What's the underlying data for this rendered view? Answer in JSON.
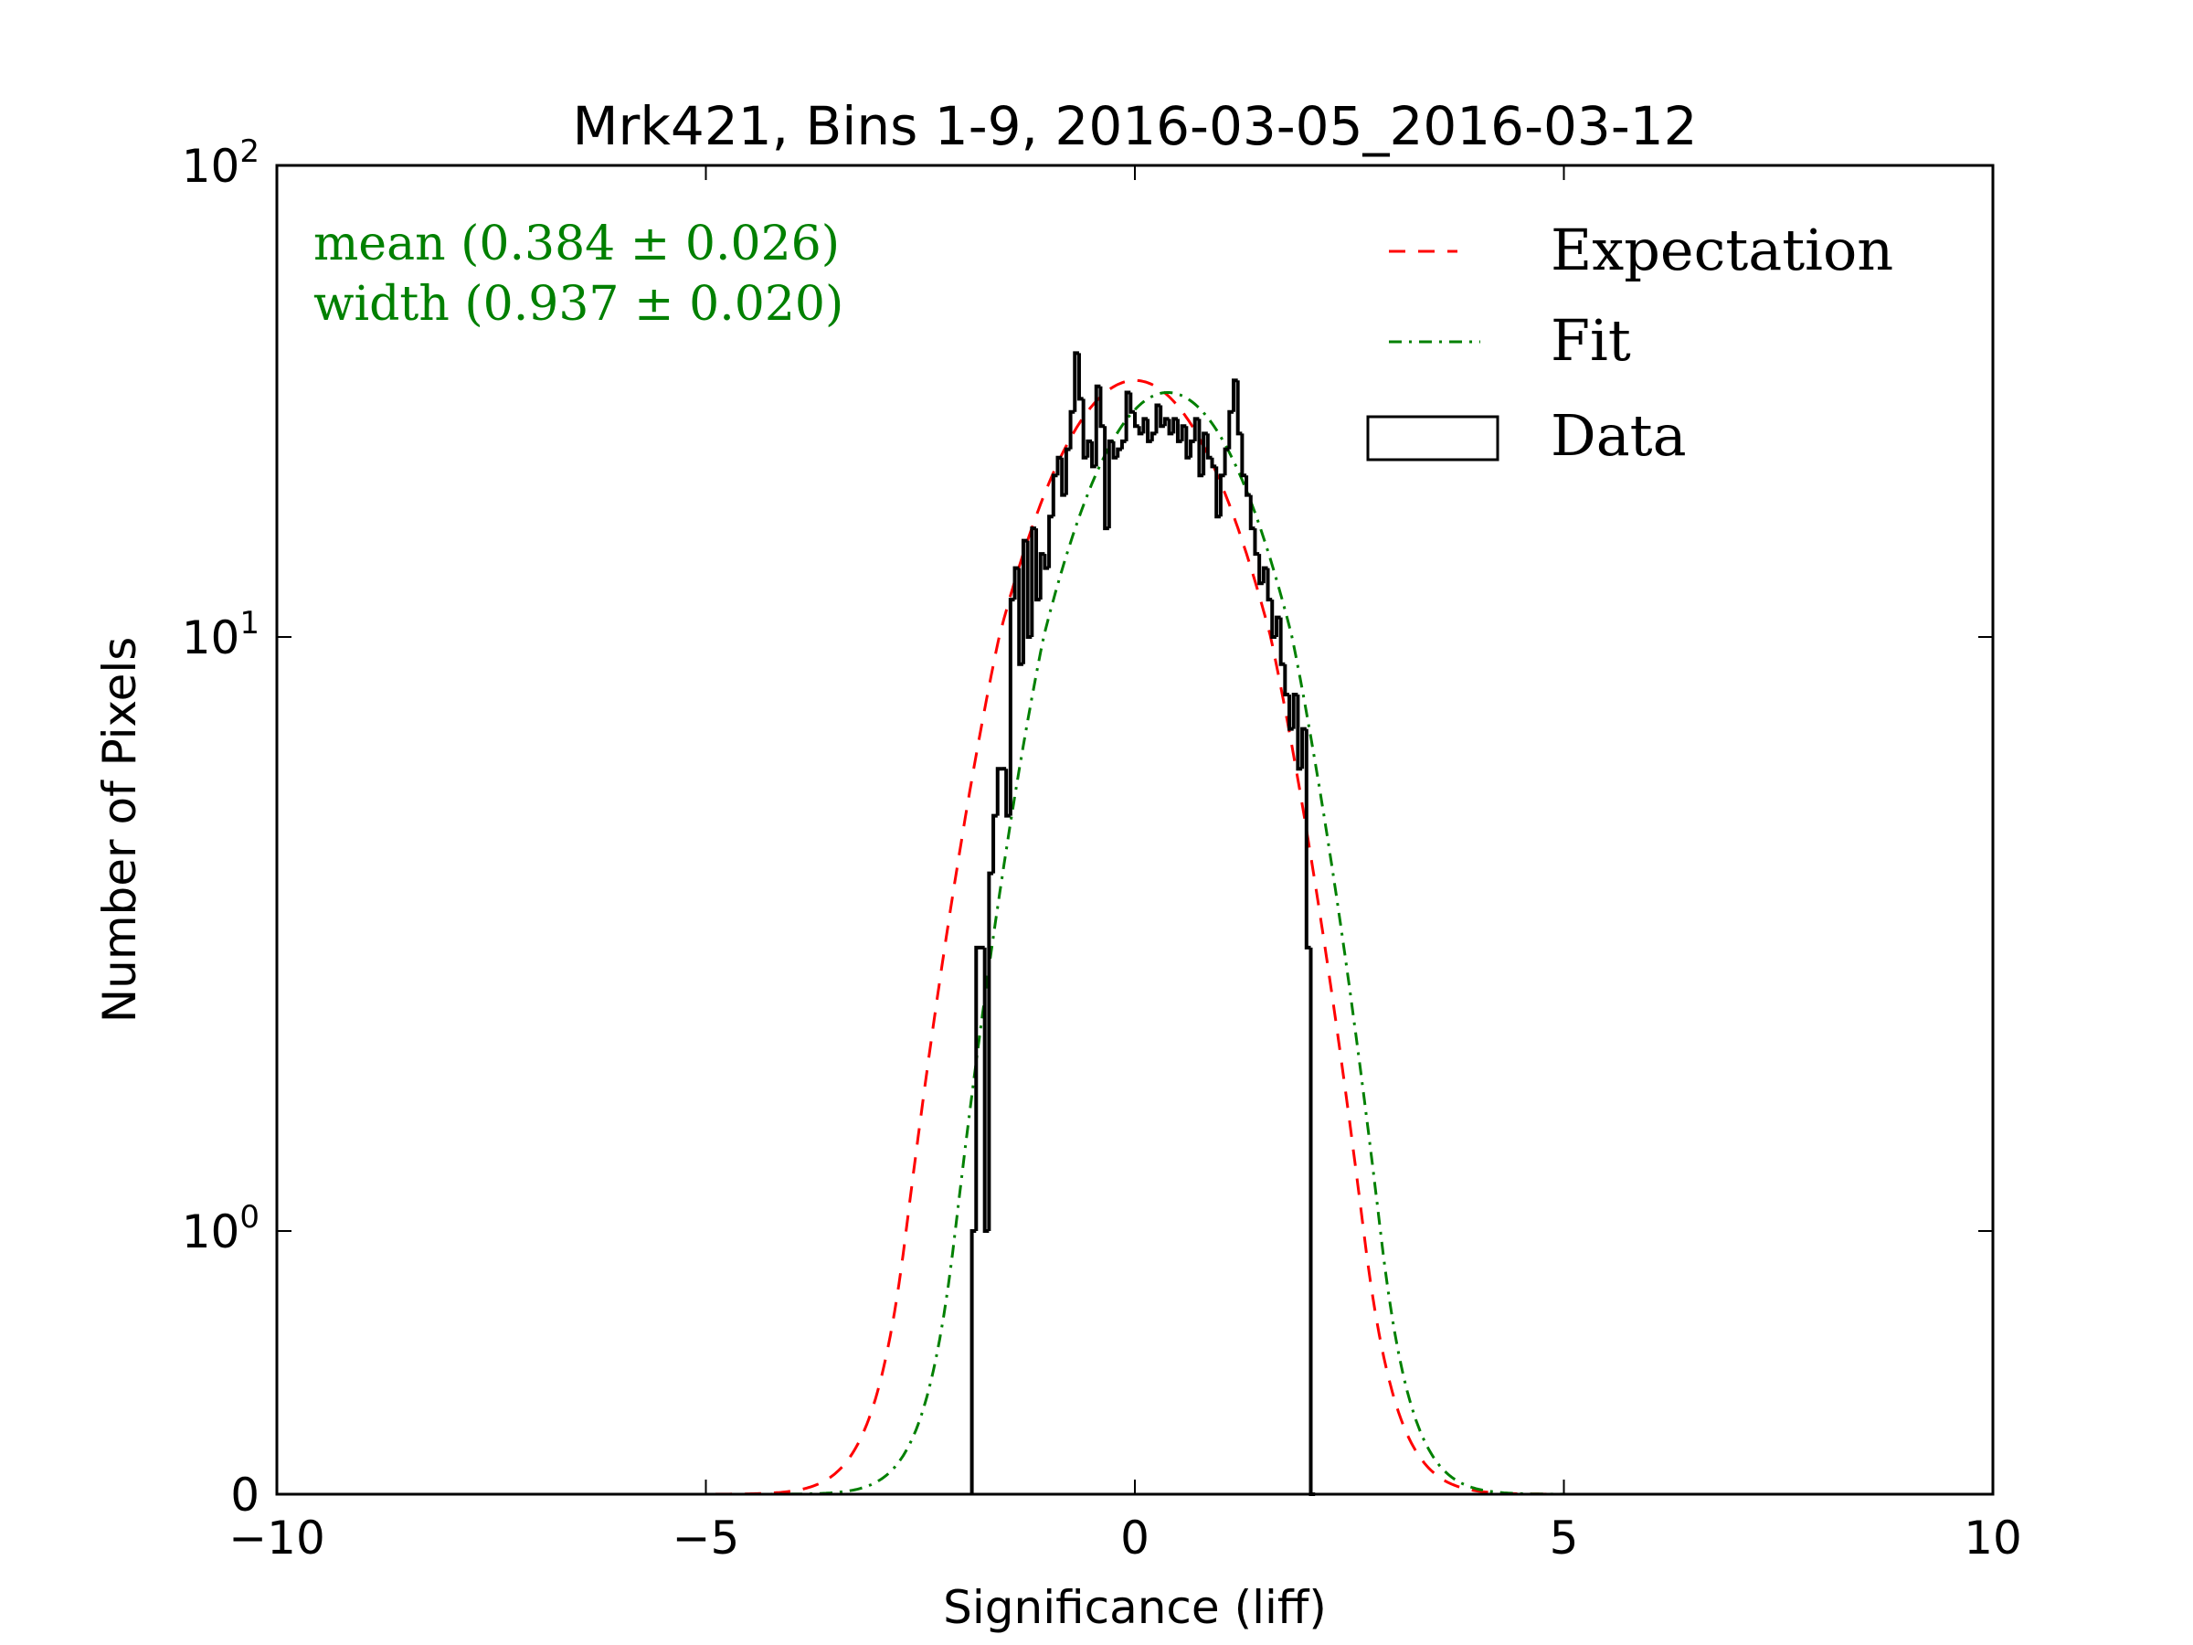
{
  "chart_data": {
    "type": "histogram",
    "title": "Mrk421, Bins 1-9, 2016-03-05_2016-03-12",
    "xlabel": "Significance (liff)",
    "ylabel": "Number of Pixels",
    "xlim": [
      -10,
      10
    ],
    "ylim": [
      0,
      100
    ],
    "yscale": "symlog",
    "xticks": [
      {
        "value": -10,
        "label": "−10"
      },
      {
        "value": -5,
        "label": "−5"
      },
      {
        "value": 0,
        "label": "0"
      },
      {
        "value": 5,
        "label": "5"
      },
      {
        "value": 10,
        "label": "10"
      }
    ],
    "yticks": [
      {
        "value": 0,
        "base": "0",
        "exp": ""
      },
      {
        "value": 1,
        "base": "10",
        "exp": "0"
      },
      {
        "value": 10,
        "base": "10",
        "exp": "1"
      },
      {
        "value": 100,
        "base": "10",
        "exp": "2"
      }
    ],
    "annotations": {
      "mean": "mean (0.384 ± 0.026)",
      "width": "width (0.937 ± 0.020)",
      "color": "#008000"
    },
    "legend": {
      "placement": "top-right",
      "entries": [
        {
          "label": "Expectation",
          "style": "dashed",
          "color": "#ff0000"
        },
        {
          "label": "Fit",
          "style": "dashdot",
          "color": "#008000"
        },
        {
          "label": "Data",
          "style": "step",
          "color": "#000000"
        }
      ]
    },
    "expectation": {
      "mean": 0.0,
      "sigma": 1.0,
      "amplitude": 35
    },
    "fit": {
      "mean": 0.384,
      "sigma": 0.937,
      "amplitude": 33
    },
    "data": {
      "bin_start": -1.9,
      "bin_width": 0.05,
      "counts": [
        1,
        3,
        3,
        1,
        4,
        5,
        6,
        6,
        5,
        12,
        14,
        9,
        16,
        10,
        17,
        12,
        15,
        14,
        18,
        22,
        24,
        20,
        25,
        30,
        40,
        32,
        24,
        26,
        23,
        34,
        28,
        17,
        26,
        24,
        25,
        26,
        33,
        30,
        28,
        27,
        29,
        26,
        27,
        31,
        28,
        29,
        27,
        29,
        26,
        28,
        24,
        26,
        29,
        22,
        27,
        24,
        23,
        18,
        22,
        25,
        30,
        35,
        27,
        22,
        20,
        17,
        15,
        13,
        14,
        12,
        10,
        11,
        9,
        8,
        7,
        8,
        6,
        7,
        3,
        0
      ]
    }
  }
}
